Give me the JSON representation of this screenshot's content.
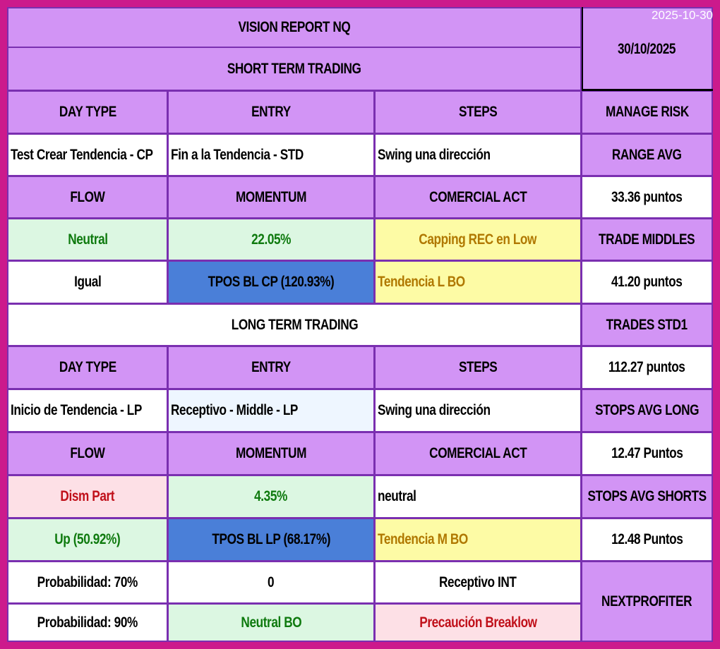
{
  "stamp": "2025-10-30",
  "title": "VISION REPORT NQ",
  "date": "30/10/2025",
  "short": {
    "section": "SHORT TERM TRADING",
    "h_daytype": "DAY TYPE",
    "h_entry": "ENTRY",
    "h_steps": "STEPS",
    "daytype": "Test Crear Tendencia - CP",
    "entry": "Fin a la Tendencia - STD",
    "steps": "Swing una dirección",
    "h_flow": "FLOW",
    "h_momentum": "MOMENTUM",
    "h_comercial": "COMERCIAL ACT",
    "flow": "Neutral",
    "momentum": "22.05%",
    "comercial": "Capping REC en Low",
    "flow2": "Igual",
    "tpos": "TPOS BL CP (120.93%)",
    "comercial2": "Tendencia L BO"
  },
  "long": {
    "section": "LONG TERM TRADING",
    "h_daytype": "DAY TYPE",
    "h_entry": "ENTRY",
    "h_steps": "STEPS",
    "daytype": "Inicio de Tendencia - LP",
    "entry": "Receptivo - Middle - LP",
    "steps": "Swing una dirección",
    "h_flow": "FLOW",
    "h_momentum": "MOMENTUM",
    "h_comercial": "COMERCIAL ACT",
    "flow": "Dism Part",
    "momentum": "4.35%",
    "comercial": "neutral",
    "flow2": "Up (50.92%)",
    "tpos": "TPOS BL LP (68.17%)",
    "comercial2": "Tendencia M BO",
    "prob1": "Probabilidad: 70%",
    "val1": "0",
    "rec1": "Receptivo INT",
    "prob2": "Probabilidad: 90%",
    "val2": "Neutral BO",
    "rec2": "Precaución Breaklow"
  },
  "risk": {
    "manage": "MANAGE RISK",
    "range_avg": "RANGE AVG",
    "range_avg_val": "33.36 puntos",
    "trade_middles": "TRADE MIDDLES",
    "trade_middles_val": "41.20 puntos",
    "trades_std1": "TRADES  STD1",
    "trades_std1_val": "112.27 puntos",
    "stops_long": "STOPS AVG LONG",
    "stops_long_val": "12.47 Puntos",
    "stops_short": "STOPS AVG SHORTS",
    "stops_short_val": "12.48 Puntos",
    "brand": "NEXTPROFITER"
  },
  "colors": {
    "border": "#cc1a8c",
    "header": "#d294f5",
    "grid": "#7a2fb0",
    "blue": "#4a7fd8",
    "light_green": "#dcf7e2",
    "light_yellow": "#fdfba5",
    "light_pink": "#fde0e6"
  }
}
